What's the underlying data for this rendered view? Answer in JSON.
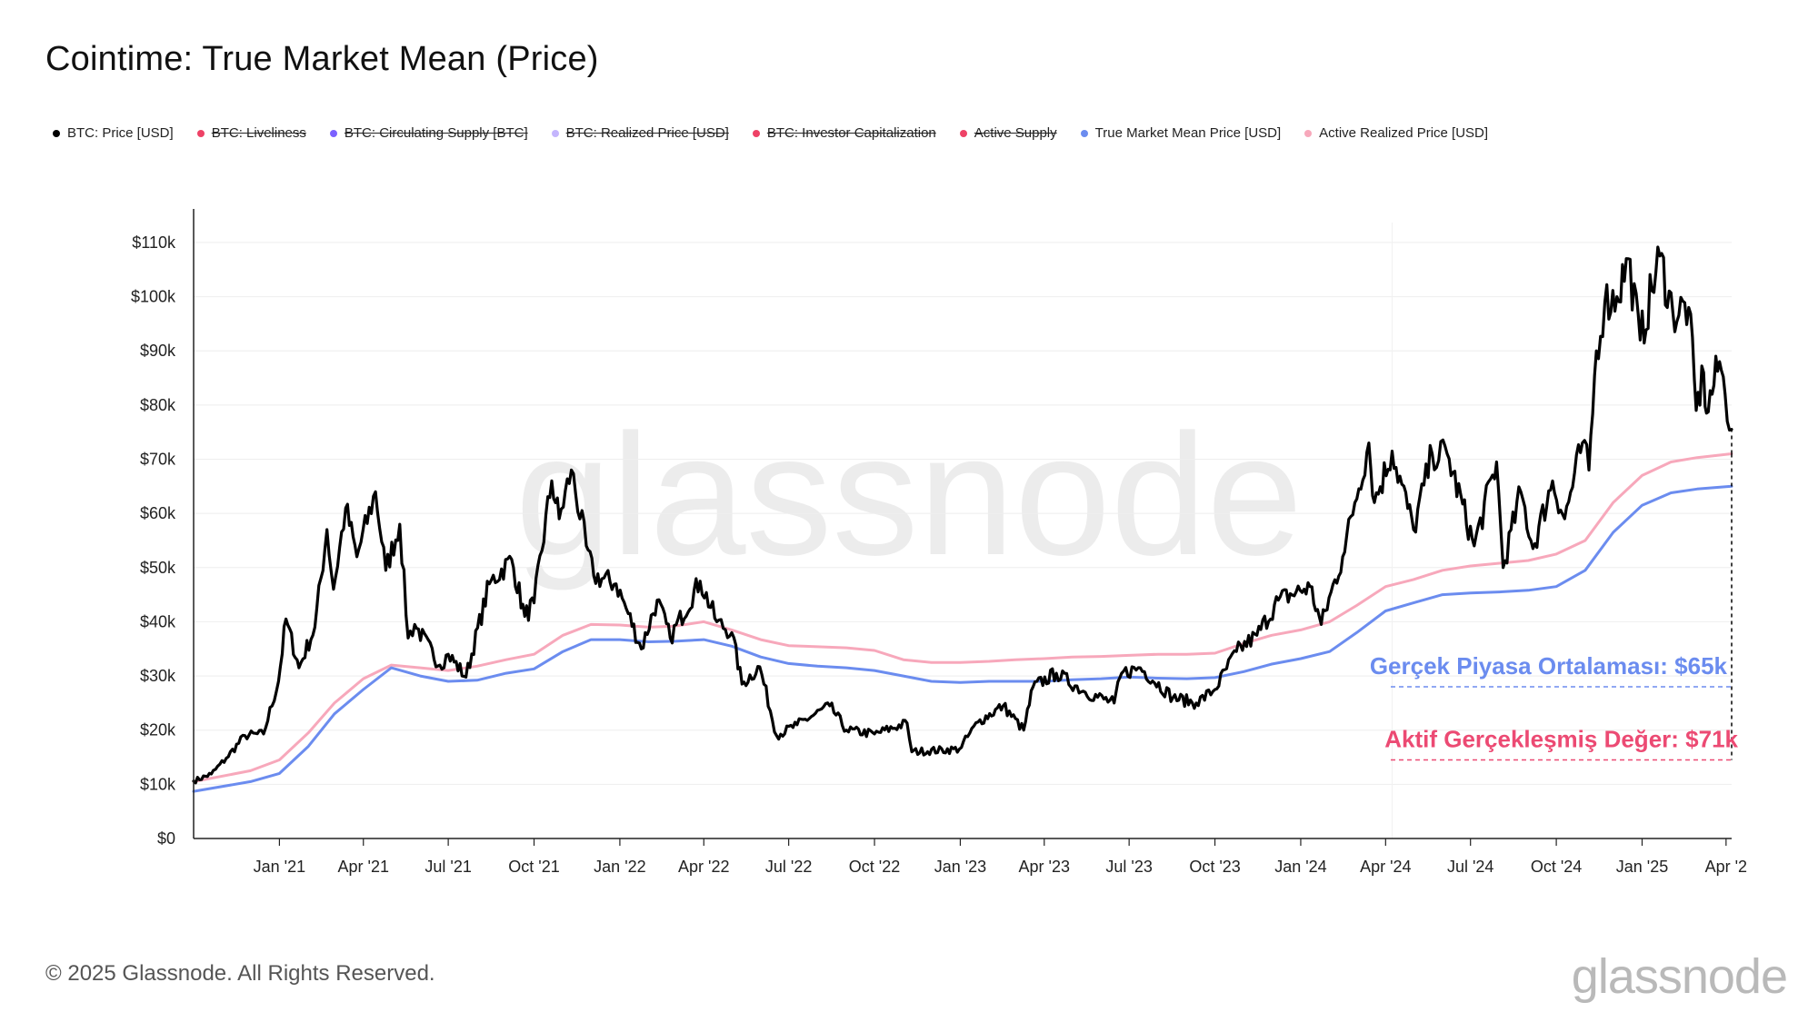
{
  "header": {
    "title": "Cointime: True Market Mean (Price)"
  },
  "legend": [
    {
      "label": "BTC: Price [USD]",
      "color": "#000000",
      "active": true
    },
    {
      "label": "BTC: Liveliness",
      "color": "#ee4266",
      "active": false
    },
    {
      "label": "BTC: Circulating Supply [BTC]",
      "color": "#7b61ff",
      "active": false
    },
    {
      "label": "BTC: Realized Price [USD]",
      "color": "#c4b5fd",
      "active": false
    },
    {
      "label": "BTC: Investor Capitalization",
      "color": "#ee4266",
      "active": false
    },
    {
      "label": "Active Supply",
      "color": "#ee4266",
      "active": false
    },
    {
      "label": "True Market Mean Price [USD]",
      "color": "#6b8cef",
      "active": true
    },
    {
      "label": "Active Realized Price [USD]",
      "color": "#f7a8bb",
      "active": true
    }
  ],
  "footer": {
    "copyright": "© 2025 Glassnode. All Rights Reserved.",
    "logo": "glassnode"
  },
  "chart_data": {
    "type": "line",
    "xlabel": "",
    "ylabel": "",
    "ylim": [
      0,
      112000
    ],
    "xlim": [
      "2020-10-01",
      "2025-04-07"
    ],
    "y_ticks": [
      {
        "value": 0,
        "label": "$0"
      },
      {
        "value": 10000,
        "label": "$10k"
      },
      {
        "value": 20000,
        "label": "$20k"
      },
      {
        "value": 30000,
        "label": "$30k"
      },
      {
        "value": 40000,
        "label": "$40k"
      },
      {
        "value": 50000,
        "label": "$50k"
      },
      {
        "value": 60000,
        "label": "$60k"
      },
      {
        "value": 70000,
        "label": "$70k"
      },
      {
        "value": 80000,
        "label": "$80k"
      },
      {
        "value": 90000,
        "label": "$90k"
      },
      {
        "value": 100000,
        "label": "$100k"
      },
      {
        "value": 110000,
        "label": "$110k"
      }
    ],
    "x_ticks": [
      {
        "date": "2021-01-01",
        "label": "Jan '21"
      },
      {
        "date": "2021-04-01",
        "label": "Apr '21"
      },
      {
        "date": "2021-07-01",
        "label": "Jul '21"
      },
      {
        "date": "2021-10-01",
        "label": "Oct '21"
      },
      {
        "date": "2022-01-01",
        "label": "Jan '22"
      },
      {
        "date": "2022-04-01",
        "label": "Apr '22"
      },
      {
        "date": "2022-07-01",
        "label": "Jul '22"
      },
      {
        "date": "2022-10-01",
        "label": "Oct '22"
      },
      {
        "date": "2023-01-01",
        "label": "Jan '23"
      },
      {
        "date": "2023-04-01",
        "label": "Apr '23"
      },
      {
        "date": "2023-07-01",
        "label": "Jul '23"
      },
      {
        "date": "2023-10-01",
        "label": "Oct '23"
      },
      {
        "date": "2024-01-01",
        "label": "Jan '24"
      },
      {
        "date": "2024-04-01",
        "label": "Apr '24"
      },
      {
        "date": "2024-07-01",
        "label": "Jul '24"
      },
      {
        "date": "2024-10-01",
        "label": "Oct '24"
      },
      {
        "date": "2025-01-01",
        "label": "Jan '25"
      },
      {
        "date": "2025-04-01",
        "label": "Apr '2"
      }
    ],
    "grid": true,
    "watermark": "glassnode",
    "series": [
      {
        "name": "BTC: Price [USD]",
        "color": "#000000",
        "points": [
          [
            "2020-10-01",
            10600
          ],
          [
            "2020-10-20",
            11900
          ],
          [
            "2020-11-05",
            14800
          ],
          [
            "2020-11-25",
            19000
          ],
          [
            "2020-12-15",
            19300
          ],
          [
            "2020-12-31",
            29000
          ],
          [
            "2021-01-08",
            40500
          ],
          [
            "2021-01-22",
            31500
          ],
          [
            "2021-02-08",
            39000
          ],
          [
            "2021-02-21",
            57000
          ],
          [
            "2021-02-28",
            46000
          ],
          [
            "2021-03-13",
            61000
          ],
          [
            "2021-03-25",
            52000
          ],
          [
            "2021-04-14",
            64000
          ],
          [
            "2021-04-25",
            49500
          ],
          [
            "2021-05-10",
            58000
          ],
          [
            "2021-05-19",
            37000
          ],
          [
            "2021-05-26",
            39500
          ],
          [
            "2021-06-22",
            32000
          ],
          [
            "2021-07-01",
            34000
          ],
          [
            "2021-07-20",
            29800
          ],
          [
            "2021-08-14",
            47000
          ],
          [
            "2021-09-07",
            51500
          ],
          [
            "2021-09-21",
            41000
          ],
          [
            "2021-10-01",
            43500
          ],
          [
            "2021-10-20",
            66000
          ],
          [
            "2021-10-28",
            59000
          ],
          [
            "2021-11-10",
            68000
          ],
          [
            "2021-11-26",
            54000
          ],
          [
            "2021-12-04",
            48500
          ],
          [
            "2021-12-28",
            47000
          ],
          [
            "2022-01-10",
            41500
          ],
          [
            "2022-01-24",
            35000
          ],
          [
            "2022-02-10",
            44000
          ],
          [
            "2022-02-24",
            37000
          ],
          [
            "2022-03-28",
            47500
          ],
          [
            "2022-04-15",
            40000
          ],
          [
            "2022-05-01",
            38000
          ],
          [
            "2022-05-12",
            28500
          ],
          [
            "2022-05-31",
            31700
          ],
          [
            "2022-06-18",
            19000
          ],
          [
            "2022-07-10",
            21000
          ],
          [
            "2022-08-14",
            24500
          ],
          [
            "2022-09-01",
            20000
          ],
          [
            "2022-10-01",
            19300
          ],
          [
            "2022-11-05",
            21300
          ],
          [
            "2022-11-10",
            16000
          ],
          [
            "2022-12-31",
            16500
          ],
          [
            "2023-01-20",
            21500
          ],
          [
            "2023-02-16",
            24500
          ],
          [
            "2023-03-10",
            20000
          ],
          [
            "2023-03-20",
            28000
          ],
          [
            "2023-04-14",
            30500
          ],
          [
            "2023-05-15",
            27000
          ],
          [
            "2023-06-15",
            25000
          ],
          [
            "2023-06-23",
            30500
          ],
          [
            "2023-07-13",
            31500
          ],
          [
            "2023-08-17",
            26000
          ],
          [
            "2023-09-11",
            25000
          ],
          [
            "2023-10-01",
            27500
          ],
          [
            "2023-10-24",
            34500
          ],
          [
            "2023-11-15",
            37500
          ],
          [
            "2023-12-08",
            44000
          ],
          [
            "2024-01-11",
            46500
          ],
          [
            "2024-01-23",
            39500
          ],
          [
            "2024-02-15",
            52000
          ],
          [
            "2024-02-28",
            62000
          ],
          [
            "2024-03-14",
            73000
          ],
          [
            "2024-03-20",
            62000
          ],
          [
            "2024-04-08",
            71500
          ],
          [
            "2024-05-01",
            57000
          ],
          [
            "2024-05-21",
            71000
          ],
          [
            "2024-06-06",
            71000
          ],
          [
            "2024-07-05",
            54000
          ],
          [
            "2024-07-29",
            69500
          ],
          [
            "2024-08-05",
            50000
          ],
          [
            "2024-08-24",
            64000
          ],
          [
            "2024-09-06",
            53500
          ],
          [
            "2024-09-27",
            66000
          ],
          [
            "2024-10-10",
            59000
          ],
          [
            "2024-10-29",
            73000
          ],
          [
            "2024-11-05",
            68000
          ],
          [
            "2024-11-13",
            90000
          ],
          [
            "2024-11-22",
            99000
          ],
          [
            "2024-12-05",
            100000
          ],
          [
            "2024-12-17",
            107000
          ],
          [
            "2024-12-30",
            92000
          ],
          [
            "2025-01-20",
            107500
          ],
          [
            "2025-02-03",
            97000
          ],
          [
            "2025-02-20",
            98000
          ],
          [
            "2025-02-28",
            79000
          ],
          [
            "2025-03-08",
            86000
          ],
          [
            "2025-03-11",
            78500
          ],
          [
            "2025-03-25",
            88000
          ],
          [
            "2025-03-31",
            82000
          ],
          [
            "2025-04-07",
            75500
          ]
        ]
      },
      {
        "name": "True Market Mean Price [USD]",
        "color": "#6b8cef",
        "points": [
          [
            "2020-10-01",
            8700
          ],
          [
            "2020-12-01",
            10500
          ],
          [
            "2021-01-01",
            12000
          ],
          [
            "2021-02-01",
            17000
          ],
          [
            "2021-03-01",
            23000
          ],
          [
            "2021-04-01",
            27500
          ],
          [
            "2021-05-01",
            31500
          ],
          [
            "2021-06-01",
            30000
          ],
          [
            "2021-07-01",
            29000
          ],
          [
            "2021-08-01",
            29200
          ],
          [
            "2021-09-01",
            30500
          ],
          [
            "2021-10-01",
            31300
          ],
          [
            "2021-11-01",
            34500
          ],
          [
            "2021-12-01",
            36700
          ],
          [
            "2022-01-01",
            36700
          ],
          [
            "2022-02-01",
            36300
          ],
          [
            "2022-03-01",
            36400
          ],
          [
            "2022-04-01",
            36700
          ],
          [
            "2022-05-01",
            35500
          ],
          [
            "2022-06-01",
            33500
          ],
          [
            "2022-07-01",
            32300
          ],
          [
            "2022-08-01",
            31800
          ],
          [
            "2022-09-01",
            31500
          ],
          [
            "2022-10-01",
            31000
          ],
          [
            "2022-11-01",
            30000
          ],
          [
            "2022-12-01",
            29000
          ],
          [
            "2023-01-01",
            28800
          ],
          [
            "2023-02-01",
            29000
          ],
          [
            "2023-03-01",
            29000
          ],
          [
            "2023-04-01",
            29000
          ],
          [
            "2023-05-01",
            29300
          ],
          [
            "2023-06-01",
            29500
          ],
          [
            "2023-07-01",
            29800
          ],
          [
            "2023-08-01",
            29600
          ],
          [
            "2023-09-01",
            29500
          ],
          [
            "2023-10-01",
            29700
          ],
          [
            "2023-11-01",
            30800
          ],
          [
            "2023-12-01",
            32200
          ],
          [
            "2024-01-01",
            33200
          ],
          [
            "2024-02-01",
            34500
          ],
          [
            "2024-03-01",
            38000
          ],
          [
            "2024-04-01",
            42000
          ],
          [
            "2024-05-01",
            43500
          ],
          [
            "2024-06-01",
            45000
          ],
          [
            "2024-07-01",
            45300
          ],
          [
            "2024-08-01",
            45500
          ],
          [
            "2024-09-01",
            45800
          ],
          [
            "2024-10-01",
            46500
          ],
          [
            "2024-11-01",
            49500
          ],
          [
            "2024-12-01",
            56500
          ],
          [
            "2025-01-01",
            61500
          ],
          [
            "2025-02-01",
            63800
          ],
          [
            "2025-03-01",
            64500
          ],
          [
            "2025-04-07",
            65000
          ]
        ]
      },
      {
        "name": "Active Realized Price [USD]",
        "color": "#f7a8bb",
        "points": [
          [
            "2020-10-01",
            10500
          ],
          [
            "2020-12-01",
            12500
          ],
          [
            "2021-01-01",
            14500
          ],
          [
            "2021-02-01",
            19500
          ],
          [
            "2021-03-01",
            25000
          ],
          [
            "2021-04-01",
            29500
          ],
          [
            "2021-05-01",
            32000
          ],
          [
            "2021-06-01",
            31500
          ],
          [
            "2021-07-01",
            31000
          ],
          [
            "2021-08-01",
            31800
          ],
          [
            "2021-09-01",
            33000
          ],
          [
            "2021-10-01",
            34000
          ],
          [
            "2021-11-01",
            37500
          ],
          [
            "2021-12-01",
            39500
          ],
          [
            "2022-01-01",
            39400
          ],
          [
            "2022-02-01",
            39000
          ],
          [
            "2022-03-01",
            39200
          ],
          [
            "2022-04-01",
            40000
          ],
          [
            "2022-05-01",
            38500
          ],
          [
            "2022-06-01",
            36700
          ],
          [
            "2022-07-01",
            35600
          ],
          [
            "2022-08-01",
            35400
          ],
          [
            "2022-09-01",
            35200
          ],
          [
            "2022-10-01",
            34700
          ],
          [
            "2022-11-01",
            33000
          ],
          [
            "2022-12-01",
            32500
          ],
          [
            "2023-01-01",
            32500
          ],
          [
            "2023-02-01",
            32700
          ],
          [
            "2023-03-01",
            33000
          ],
          [
            "2023-04-01",
            33200
          ],
          [
            "2023-05-01",
            33500
          ],
          [
            "2023-06-01",
            33600
          ],
          [
            "2023-07-01",
            33800
          ],
          [
            "2023-08-01",
            34000
          ],
          [
            "2023-09-01",
            34000
          ],
          [
            "2023-10-01",
            34200
          ],
          [
            "2023-11-01",
            36000
          ],
          [
            "2023-12-01",
            37500
          ],
          [
            "2024-01-01",
            38500
          ],
          [
            "2024-02-01",
            40000
          ],
          [
            "2024-03-01",
            43000
          ],
          [
            "2024-04-01",
            46500
          ],
          [
            "2024-05-01",
            47800
          ],
          [
            "2024-06-01",
            49500
          ],
          [
            "2024-07-01",
            50300
          ],
          [
            "2024-08-01",
            50800
          ],
          [
            "2024-09-01",
            51300
          ],
          [
            "2024-10-01",
            52500
          ],
          [
            "2024-11-01",
            55000
          ],
          [
            "2024-12-01",
            62000
          ],
          [
            "2025-01-01",
            67000
          ],
          [
            "2025-02-01",
            69500
          ],
          [
            "2025-03-01",
            70300
          ],
          [
            "2025-04-07",
            71000
          ]
        ]
      }
    ],
    "annotations": [
      {
        "text": "Gerçek Piyasa Ortalaması: $65k",
        "color": "#6b8cef",
        "value": 65000,
        "guide_y": 28000
      },
      {
        "text": "Aktif Gerçekleşmiş Değer: $71k",
        "color": "#ec4a73",
        "value": 71000,
        "guide_y": 14500
      }
    ]
  }
}
